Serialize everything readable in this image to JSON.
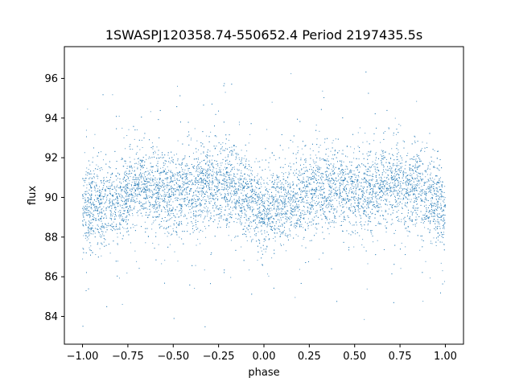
{
  "chart_data": {
    "type": "scatter",
    "title": "1SWASPJ120358.74-550652.4 Period 2197435.5s",
    "xlabel": "phase",
    "ylabel": "flux",
    "xlim": [
      -1.1,
      1.1
    ],
    "ylim": [
      82.6,
      97.6
    ],
    "xticks": [
      -1.0,
      -0.75,
      -0.5,
      -0.25,
      0.0,
      0.25,
      0.5,
      0.75,
      1.0
    ],
    "xtick_labels": [
      "−1.00",
      "−0.75",
      "−0.50",
      "−0.25",
      "0.00",
      "0.25",
      "0.50",
      "0.75",
      "1.00"
    ],
    "yticks": [
      84,
      86,
      88,
      90,
      92,
      94,
      96
    ],
    "ytick_labels": [
      "84",
      "86",
      "88",
      "90",
      "92",
      "94",
      "96"
    ],
    "grid": false,
    "legend": "none",
    "point_color": "#1f77b4",
    "series": [
      {
        "phase_range": [
          -1.0,
          1.0
        ],
        "profile_x": [
          -1.0,
          -0.9,
          -0.8,
          -0.7,
          -0.6,
          -0.5,
          -0.4,
          -0.3,
          -0.2,
          -0.1,
          0.0,
          0.1,
          0.2,
          0.3,
          0.4,
          0.5,
          0.6,
          0.7,
          0.8,
          0.9,
          1.0
        ],
        "profile_median_flux": [
          89.4,
          89.6,
          89.9,
          90.6,
          90.5,
          90.2,
          90.4,
          90.6,
          90.6,
          90.0,
          89.4,
          89.6,
          89.9,
          90.6,
          90.5,
          90.2,
          90.4,
          90.6,
          90.6,
          90.0,
          89.4
        ],
        "scatter_sigma": 1.0,
        "flux_min": 83.3,
        "flux_max": 96.9,
        "n_points": 9000
      }
    ]
  }
}
